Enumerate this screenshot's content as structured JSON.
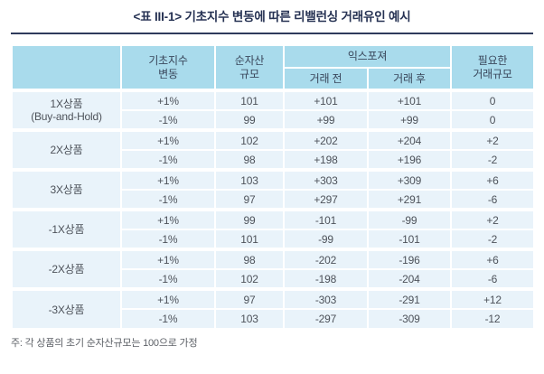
{
  "title": "<표 III-1> 기초지수 변동에 따른 리밸런싱 거래유인 예시",
  "colors": {
    "header_bg": "#a9dbec",
    "row_bg": "#e9f3fa",
    "title_rule": "#2f3b5c",
    "text": "#4d525a"
  },
  "table": {
    "headers": {
      "product": "",
      "index_change": "기초지수\n변동",
      "nav": "순자산\n규모",
      "exposure": "익스포져",
      "exposure_before": "거래 전",
      "exposure_after": "거래 후",
      "required_trade": "필요한\n거래규모"
    },
    "groups": [
      {
        "product": "1X상품\n(Buy-and-Hold)",
        "rows": [
          [
            "+1%",
            "101",
            "+101",
            "+101",
            "0"
          ],
          [
            "-1%",
            "99",
            "+99",
            "+99",
            "0"
          ]
        ]
      },
      {
        "product": "2X상품",
        "rows": [
          [
            "+1%",
            "102",
            "+202",
            "+204",
            "+2"
          ],
          [
            "-1%",
            "98",
            "+198",
            "+196",
            "-2"
          ]
        ]
      },
      {
        "product": "3X상품",
        "rows": [
          [
            "+1%",
            "103",
            "+303",
            "+309",
            "+6"
          ],
          [
            "-1%",
            "97",
            "+297",
            "+291",
            "-6"
          ]
        ]
      },
      {
        "product": "-1X상품",
        "rows": [
          [
            "+1%",
            "99",
            "-101",
            "-99",
            "+2"
          ],
          [
            "-1%",
            "101",
            "-99",
            "-101",
            "-2"
          ]
        ]
      },
      {
        "product": "-2X상품",
        "rows": [
          [
            "+1%",
            "98",
            "-202",
            "-196",
            "+6"
          ],
          [
            "-1%",
            "102",
            "-198",
            "-204",
            "-6"
          ]
        ]
      },
      {
        "product": "-3X상품",
        "rows": [
          [
            "+1%",
            "97",
            "-303",
            "-291",
            "+12"
          ],
          [
            "-1%",
            "103",
            "-297",
            "-309",
            "-12"
          ]
        ]
      }
    ]
  },
  "footnote": "주: 각 상품의 초기 순자산규모는 100으로 가정"
}
